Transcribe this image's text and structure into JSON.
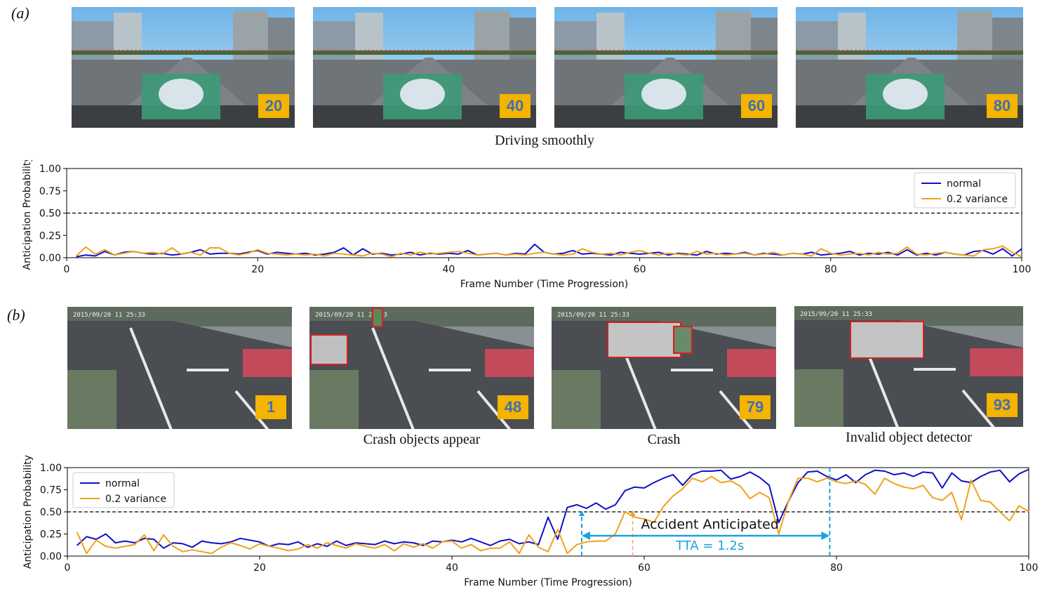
{
  "panels": [
    {
      "label": "(a)",
      "frames": [
        {
          "badge": "20",
          "scene": "road"
        },
        {
          "badge": "40",
          "scene": "road"
        },
        {
          "badge": "60",
          "scene": "road"
        },
        {
          "badge": "80",
          "scene": "road"
        }
      ],
      "captions": [
        "Driving smoothly"
      ]
    },
    {
      "label": "(b)",
      "frames": [
        {
          "badge": "1",
          "scene": "intersection"
        },
        {
          "badge": "48",
          "scene": "intersection"
        },
        {
          "badge": "79",
          "scene": "intersection"
        },
        {
          "badge": "93",
          "scene": "intersection"
        }
      ],
      "captions": [
        "Crash objects appear",
        "Crash",
        "Invalid object detector"
      ]
    }
  ],
  "colors": {
    "normal": "#1010c8",
    "variance": "#f0a21a",
    "threshold": "#000000",
    "tta": "#1aa3dd",
    "badge": "#f4b400",
    "badge_text": "#3f6fb5"
  },
  "chart_data": [
    {
      "type": "line",
      "xlabel": "Frame Number (Time Progression)",
      "ylabel": "Anticipation Probability",
      "xlim": [
        0,
        100
      ],
      "ylim": [
        0,
        1
      ],
      "xticks": [
        "0",
        "20",
        "40",
        "60",
        "80",
        "100"
      ],
      "yticks": [
        "0.00",
        "0.25",
        "0.50",
        "0.75",
        "1.00"
      ],
      "threshold": 0.5,
      "legend_position": "top-right",
      "series": [
        {
          "name": "normal",
          "x_start": 1,
          "values": [
            0.01,
            0.03,
            0.02,
            0.07,
            0.03,
            0.06,
            0.07,
            0.05,
            0.04,
            0.05,
            0.03,
            0.04,
            0.06,
            0.09,
            0.04,
            0.05,
            0.05,
            0.04,
            0.06,
            0.08,
            0.04,
            0.06,
            0.05,
            0.04,
            0.05,
            0.03,
            0.04,
            0.06,
            0.11,
            0.03,
            0.1,
            0.04,
            0.05,
            0.03,
            0.04,
            0.06,
            0.03,
            0.05,
            0.04,
            0.05,
            0.04,
            0.08,
            0.03,
            0.04,
            0.05,
            0.03,
            0.05,
            0.04,
            0.15,
            0.06,
            0.04,
            0.05,
            0.08,
            0.04,
            0.05,
            0.04,
            0.03,
            0.06,
            0.05,
            0.04,
            0.05,
            0.06,
            0.03,
            0.05,
            0.04,
            0.03,
            0.07,
            0.04,
            0.05,
            0.04,
            0.06,
            0.03,
            0.05,
            0.04,
            0.03,
            0.05,
            0.04,
            0.06,
            0.03,
            0.04,
            0.05,
            0.07,
            0.03,
            0.05,
            0.04,
            0.06,
            0.03,
            0.09,
            0.03,
            0.05,
            0.03,
            0.06,
            0.04,
            0.03,
            0.07,
            0.08,
            0.04,
            0.1,
            0.02,
            0.1
          ]
        },
        {
          "name": "0.2 variance",
          "x_start": 1,
          "values": [
            0.02,
            0.12,
            0.04,
            0.09,
            0.03,
            0.05,
            0.07,
            0.05,
            0.06,
            0.04,
            0.11,
            0.04,
            0.06,
            0.03,
            0.11,
            0.11,
            0.05,
            0.03,
            0.05,
            0.09,
            0.05,
            0.04,
            0.03,
            0.04,
            0.03,
            0.04,
            0.02,
            0.05,
            0.04,
            0.03,
            0.02,
            0.05,
            0.04,
            0.01,
            0.05,
            0.03,
            0.06,
            0.04,
            0.05,
            0.06,
            0.07,
            0.05,
            0.03,
            0.04,
            0.05,
            0.03,
            0.04,
            0.03,
            0.05,
            0.06,
            0.04,
            0.03,
            0.04,
            0.1,
            0.06,
            0.04,
            0.05,
            0.03,
            0.06,
            0.08,
            0.05,
            0.03,
            0.05,
            0.04,
            0.03,
            0.07,
            0.04,
            0.05,
            0.03,
            0.04,
            0.05,
            0.03,
            0.04,
            0.06,
            0.03,
            0.05,
            0.04,
            0.02,
            0.1,
            0.05,
            0.03,
            0.04,
            0.05,
            0.03,
            0.06,
            0.04,
            0.05,
            0.12,
            0.04,
            0.03,
            0.05,
            0.06,
            0.04,
            0.03,
            0.02,
            0.09,
            0.1,
            0.13,
            0.06,
            0.01
          ]
        }
      ]
    },
    {
      "type": "line",
      "xlabel": "Frame Number (Time Progression)",
      "ylabel": "Anticipation Probability",
      "xlim": [
        0,
        100
      ],
      "ylim": [
        0,
        1
      ],
      "xticks": [
        "0",
        "20",
        "40",
        "60",
        "80",
        "100"
      ],
      "yticks": [
        "0.00",
        "0.25",
        "0.50",
        "0.75",
        "1.00"
      ],
      "threshold": 0.5,
      "legend_position": "top-left",
      "series": [
        {
          "name": "normal",
          "x_start": 1,
          "values": [
            0.12,
            0.22,
            0.19,
            0.25,
            0.15,
            0.17,
            0.15,
            0.2,
            0.19,
            0.09,
            0.15,
            0.14,
            0.1,
            0.17,
            0.15,
            0.14,
            0.16,
            0.2,
            0.18,
            0.16,
            0.11,
            0.14,
            0.13,
            0.16,
            0.1,
            0.14,
            0.11,
            0.17,
            0.12,
            0.15,
            0.14,
            0.13,
            0.17,
            0.14,
            0.16,
            0.15,
            0.12,
            0.17,
            0.16,
            0.18,
            0.16,
            0.2,
            0.16,
            0.12,
            0.17,
            0.19,
            0.14,
            0.16,
            0.13,
            0.44,
            0.19,
            0.55,
            0.58,
            0.54,
            0.6,
            0.53,
            0.58,
            0.74,
            0.78,
            0.77,
            0.83,
            0.88,
            0.92,
            0.8,
            0.92,
            0.96,
            0.96,
            0.97,
            0.87,
            0.9,
            0.95,
            0.89,
            0.8,
            0.38,
            0.62,
            0.83,
            0.95,
            0.96,
            0.9,
            0.86,
            0.92,
            0.83,
            0.92,
            0.97,
            0.96,
            0.92,
            0.94,
            0.9,
            0.95,
            0.94,
            0.77,
            0.94,
            0.85,
            0.83,
            0.9,
            0.95,
            0.97,
            0.84,
            0.93,
            0.98
          ]
        },
        {
          "name": "0.2 variance",
          "x_start": 1,
          "values": [
            0.27,
            0.03,
            0.18,
            0.11,
            0.09,
            0.11,
            0.13,
            0.24,
            0.06,
            0.24,
            0.11,
            0.05,
            0.07,
            0.05,
            0.03,
            0.1,
            0.15,
            0.12,
            0.08,
            0.14,
            0.11,
            0.09,
            0.06,
            0.08,
            0.13,
            0.09,
            0.15,
            0.12,
            0.09,
            0.14,
            0.11,
            0.09,
            0.13,
            0.06,
            0.14,
            0.1,
            0.14,
            0.09,
            0.16,
            0.17,
            0.09,
            0.13,
            0.06,
            0.09,
            0.09,
            0.16,
            0.03,
            0.24,
            0.1,
            0.05,
            0.3,
            0.03,
            0.13,
            0.16,
            0.17,
            0.17,
            0.25,
            0.5,
            0.44,
            0.42,
            0.38,
            0.56,
            0.68,
            0.76,
            0.88,
            0.84,
            0.9,
            0.83,
            0.85,
            0.79,
            0.65,
            0.72,
            0.66,
            0.25,
            0.62,
            0.88,
            0.88,
            0.84,
            0.88,
            0.84,
            0.82,
            0.85,
            0.81,
            0.7,
            0.88,
            0.82,
            0.78,
            0.76,
            0.8,
            0.66,
            0.63,
            0.72,
            0.41,
            0.86,
            0.63,
            0.61,
            0.5,
            0.4,
            0.57,
            0.5
          ]
        }
      ],
      "annotations": {
        "text": "Accident Anticipated",
        "tta_label": "TTA = 1.2s",
        "tta_start_frame": 53.5,
        "tta_end_frame": 79.3,
        "variance_cross_frame": 58.8
      }
    }
  ]
}
